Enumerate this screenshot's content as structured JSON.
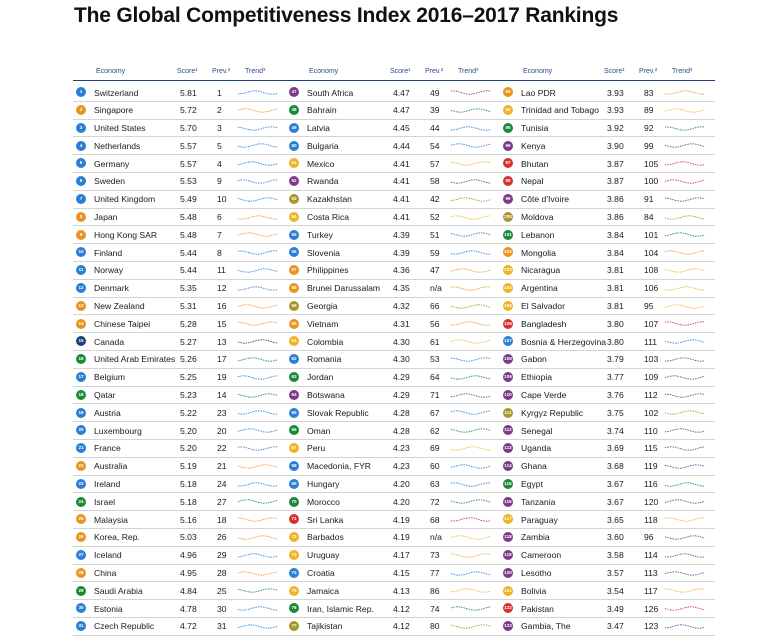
{
  "title": "The Global Competitiveness Index 2016–2017 Rankings",
  "headers": {
    "economy": "Economy",
    "score": "Score¹",
    "prev": "Prev.²",
    "trend": "Trend³"
  },
  "colors": {
    "blue": "#2a7fd4",
    "navy": "#1f3f7a",
    "green": "#1a8a3a",
    "orange": "#e8951f",
    "purple": "#7b3a8c",
    "red": "#d9312b",
    "olive": "#a7962a",
    "gold": "#f0b323",
    "rule": "#1f3f7a"
  },
  "columns": [
    [
      {
        "rank": "1",
        "economy": "Switzerland",
        "score": "5.81",
        "prev": "1",
        "color": "blue"
      },
      {
        "rank": "2",
        "economy": "Singapore",
        "score": "5.72",
        "prev": "2",
        "color": "orange"
      },
      {
        "rank": "3",
        "economy": "United States",
        "score": "5.70",
        "prev": "3",
        "color": "blue"
      },
      {
        "rank": "4",
        "economy": "Netherlands",
        "score": "5.57",
        "prev": "5",
        "color": "blue"
      },
      {
        "rank": "5",
        "economy": "Germany",
        "score": "5.57",
        "prev": "4",
        "color": "blue"
      },
      {
        "rank": "6",
        "economy": "Sweden",
        "score": "5.53",
        "prev": "9",
        "color": "blue"
      },
      {
        "rank": "7",
        "economy": "United Kingdom",
        "score": "5.49",
        "prev": "10",
        "color": "blue"
      },
      {
        "rank": "8",
        "economy": "Japan",
        "score": "5.48",
        "prev": "6",
        "color": "orange"
      },
      {
        "rank": "9",
        "economy": "Hong Kong SAR",
        "score": "5.48",
        "prev": "7",
        "color": "orange"
      },
      {
        "rank": "10",
        "economy": "Finland",
        "score": "5.44",
        "prev": "8",
        "color": "blue"
      },
      {
        "rank": "11",
        "economy": "Norway",
        "score": "5.44",
        "prev": "11",
        "color": "blue"
      },
      {
        "rank": "12",
        "economy": "Denmark",
        "score": "5.35",
        "prev": "12",
        "color": "blue"
      },
      {
        "rank": "13",
        "economy": "New Zealand",
        "score": "5.31",
        "prev": "16",
        "color": "orange"
      },
      {
        "rank": "14",
        "economy": "Chinese Taipei",
        "score": "5.28",
        "prev": "15",
        "color": "orange"
      },
      {
        "rank": "15",
        "economy": "Canada",
        "score": "5.27",
        "prev": "13",
        "color": "navy"
      },
      {
        "rank": "16",
        "economy": "United Arab Emirates",
        "score": "5.26",
        "prev": "17",
        "color": "green"
      },
      {
        "rank": "17",
        "economy": "Belgium",
        "score": "5.25",
        "prev": "19",
        "color": "blue"
      },
      {
        "rank": "18",
        "economy": "Qatar",
        "score": "5.23",
        "prev": "14",
        "color": "green"
      },
      {
        "rank": "19",
        "economy": "Austria",
        "score": "5.22",
        "prev": "23",
        "color": "blue"
      },
      {
        "rank": "20",
        "economy": "Luxembourg",
        "score": "5.20",
        "prev": "20",
        "color": "blue"
      },
      {
        "rank": "21",
        "economy": "France",
        "score": "5.20",
        "prev": "22",
        "color": "blue"
      },
      {
        "rank": "22",
        "economy": "Australia",
        "score": "5.19",
        "prev": "21",
        "color": "orange"
      },
      {
        "rank": "23",
        "economy": "Ireland",
        "score": "5.18",
        "prev": "24",
        "color": "blue"
      },
      {
        "rank": "24",
        "economy": "Israel",
        "score": "5.18",
        "prev": "27",
        "color": "green"
      },
      {
        "rank": "25",
        "economy": "Malaysia",
        "score": "5.16",
        "prev": "18",
        "color": "orange"
      },
      {
        "rank": "26",
        "economy": "Korea, Rep.",
        "score": "5.03",
        "prev": "26",
        "color": "orange"
      },
      {
        "rank": "27",
        "economy": "Iceland",
        "score": "4.96",
        "prev": "29",
        "color": "blue"
      },
      {
        "rank": "28",
        "economy": "China",
        "score": "4.95",
        "prev": "28",
        "color": "orange"
      },
      {
        "rank": "29",
        "economy": "Saudi Arabia",
        "score": "4.84",
        "prev": "25",
        "color": "green"
      },
      {
        "rank": "30",
        "economy": "Estonia",
        "score": "4.78",
        "prev": "30",
        "color": "blue"
      },
      {
        "rank": "31",
        "economy": "Czech Republic",
        "score": "4.72",
        "prev": "31",
        "color": "blue"
      }
    ],
    [
      {
        "rank": "47",
        "economy": "South Africa",
        "score": "4.47",
        "prev": "49",
        "color": "purple"
      },
      {
        "rank": "48",
        "economy": "Bahrain",
        "score": "4.47",
        "prev": "39",
        "color": "green"
      },
      {
        "rank": "49",
        "economy": "Latvia",
        "score": "4.45",
        "prev": "44",
        "color": "blue"
      },
      {
        "rank": "50",
        "economy": "Bulgaria",
        "score": "4.44",
        "prev": "54",
        "color": "blue"
      },
      {
        "rank": "51",
        "economy": "Mexico",
        "score": "4.41",
        "prev": "57",
        "color": "gold"
      },
      {
        "rank": "52",
        "economy": "Rwanda",
        "score": "4.41",
        "prev": "58",
        "color": "purple"
      },
      {
        "rank": "53",
        "economy": "Kazakhstan",
        "score": "4.41",
        "prev": "42",
        "color": "olive"
      },
      {
        "rank": "54",
        "economy": "Costa Rica",
        "score": "4.41",
        "prev": "52",
        "color": "gold"
      },
      {
        "rank": "55",
        "economy": "Turkey",
        "score": "4.39",
        "prev": "51",
        "color": "blue"
      },
      {
        "rank": "56",
        "economy": "Slovenia",
        "score": "4.39",
        "prev": "59",
        "color": "blue"
      },
      {
        "rank": "57",
        "economy": "Philippines",
        "score": "4.36",
        "prev": "47",
        "color": "orange"
      },
      {
        "rank": "58",
        "economy": "Brunei Darussalam",
        "score": "4.35",
        "prev": "n/a",
        "color": "orange"
      },
      {
        "rank": "59",
        "economy": "Georgia",
        "score": "4.32",
        "prev": "66",
        "color": "olive"
      },
      {
        "rank": "60",
        "economy": "Vietnam",
        "score": "4.31",
        "prev": "56",
        "color": "orange"
      },
      {
        "rank": "61",
        "economy": "Colombia",
        "score": "4.30",
        "prev": "61",
        "color": "gold"
      },
      {
        "rank": "62",
        "economy": "Romania",
        "score": "4.30",
        "prev": "53",
        "color": "blue"
      },
      {
        "rank": "63",
        "economy": "Jordan",
        "score": "4.29",
        "prev": "64",
        "color": "green"
      },
      {
        "rank": "64",
        "economy": "Botswana",
        "score": "4.29",
        "prev": "71",
        "color": "purple"
      },
      {
        "rank": "65",
        "economy": "Slovak Republic",
        "score": "4.28",
        "prev": "67",
        "color": "blue"
      },
      {
        "rank": "66",
        "economy": "Oman",
        "score": "4.28",
        "prev": "62",
        "color": "green"
      },
      {
        "rank": "67",
        "economy": "Peru",
        "score": "4.23",
        "prev": "69",
        "color": "gold"
      },
      {
        "rank": "68",
        "economy": "Macedonia, FYR",
        "score": "4.23",
        "prev": "60",
        "color": "blue"
      },
      {
        "rank": "69",
        "economy": "Hungary",
        "score": "4.20",
        "prev": "63",
        "color": "blue"
      },
      {
        "rank": "70",
        "economy": "Morocco",
        "score": "4.20",
        "prev": "72",
        "color": "green"
      },
      {
        "rank": "71",
        "economy": "Sri Lanka",
        "score": "4.19",
        "prev": "68",
        "color": "red"
      },
      {
        "rank": "72",
        "economy": "Barbados",
        "score": "4.19",
        "prev": "n/a",
        "color": "gold"
      },
      {
        "rank": "73",
        "economy": "Uruguay",
        "score": "4.17",
        "prev": "73",
        "color": "gold"
      },
      {
        "rank": "74",
        "economy": "Croatia",
        "score": "4.15",
        "prev": "77",
        "color": "blue"
      },
      {
        "rank": "75",
        "economy": "Jamaica",
        "score": "4.13",
        "prev": "86",
        "color": "gold"
      },
      {
        "rank": "76",
        "economy": "Iran, Islamic Rep.",
        "score": "4.12",
        "prev": "74",
        "color": "green"
      },
      {
        "rank": "77",
        "economy": "Tajikistan",
        "score": "4.12",
        "prev": "80",
        "color": "olive"
      }
    ],
    [
      {
        "rank": "93",
        "economy": "Lao PDR",
        "score": "3.93",
        "prev": "83",
        "color": "orange"
      },
      {
        "rank": "94",
        "economy": "Trinidad and Tobago",
        "score": "3.93",
        "prev": "89",
        "color": "gold"
      },
      {
        "rank": "95",
        "economy": "Tunisia",
        "score": "3.92",
        "prev": "92",
        "color": "green"
      },
      {
        "rank": "96",
        "economy": "Kenya",
        "score": "3.90",
        "prev": "99",
        "color": "purple"
      },
      {
        "rank": "97",
        "economy": "Bhutan",
        "score": "3.87",
        "prev": "105",
        "color": "red"
      },
      {
        "rank": "98",
        "economy": "Nepal",
        "score": "3.87",
        "prev": "100",
        "color": "red"
      },
      {
        "rank": "99",
        "economy": "Côte d'Ivoire",
        "score": "3.86",
        "prev": "91",
        "color": "purple"
      },
      {
        "rank": "100",
        "economy": "Moldova",
        "score": "3.86",
        "prev": "84",
        "color": "olive"
      },
      {
        "rank": "101",
        "economy": "Lebanon",
        "score": "3.84",
        "prev": "101",
        "color": "green"
      },
      {
        "rank": "102",
        "economy": "Mongolia",
        "score": "3.84",
        "prev": "104",
        "color": "orange"
      },
      {
        "rank": "103",
        "economy": "Nicaragua",
        "score": "3.81",
        "prev": "108",
        "color": "gold"
      },
      {
        "rank": "104",
        "economy": "Argentina",
        "score": "3.81",
        "prev": "106",
        "color": "gold"
      },
      {
        "rank": "105",
        "economy": "El Salvador",
        "score": "3.81",
        "prev": "95",
        "color": "gold"
      },
      {
        "rank": "106",
        "economy": "Bangladesh",
        "score": "3.80",
        "prev": "107",
        "color": "red"
      },
      {
        "rank": "107",
        "economy": "Bosnia & Herzegovina",
        "score": "3.80",
        "prev": "111",
        "color": "blue"
      },
      {
        "rank": "108",
        "economy": "Gabon",
        "score": "3.79",
        "prev": "103",
        "color": "purple"
      },
      {
        "rank": "109",
        "economy": "Ethiopia",
        "score": "3.77",
        "prev": "109",
        "color": "purple"
      },
      {
        "rank": "110",
        "economy": "Cape Verde",
        "score": "3.76",
        "prev": "112",
        "color": "purple"
      },
      {
        "rank": "111",
        "economy": "Kyrgyz Republic",
        "score": "3.75",
        "prev": "102",
        "color": "olive"
      },
      {
        "rank": "112",
        "economy": "Senegal",
        "score": "3.74",
        "prev": "110",
        "color": "purple"
      },
      {
        "rank": "113",
        "economy": "Uganda",
        "score": "3.69",
        "prev": "115",
        "color": "purple"
      },
      {
        "rank": "114",
        "economy": "Ghana",
        "score": "3.68",
        "prev": "119",
        "color": "purple"
      },
      {
        "rank": "115",
        "economy": "Egypt",
        "score": "3.67",
        "prev": "116",
        "color": "green"
      },
      {
        "rank": "116",
        "economy": "Tanzania",
        "score": "3.67",
        "prev": "120",
        "color": "purple"
      },
      {
        "rank": "117",
        "economy": "Paraguay",
        "score": "3.65",
        "prev": "118",
        "color": "gold"
      },
      {
        "rank": "118",
        "economy": "Zambia",
        "score": "3.60",
        "prev": "96",
        "color": "purple"
      },
      {
        "rank": "119",
        "economy": "Cameroon",
        "score": "3.58",
        "prev": "114",
        "color": "purple"
      },
      {
        "rank": "120",
        "economy": "Lesotho",
        "score": "3.57",
        "prev": "113",
        "color": "purple"
      },
      {
        "rank": "121",
        "economy": "Bolivia",
        "score": "3.54",
        "prev": "117",
        "color": "gold"
      },
      {
        "rank": "122",
        "economy": "Pakistan",
        "score": "3.49",
        "prev": "126",
        "color": "red"
      },
      {
        "rank": "123",
        "economy": "Gambia, The",
        "score": "3.47",
        "prev": "123",
        "color": "purple"
      }
    ]
  ]
}
